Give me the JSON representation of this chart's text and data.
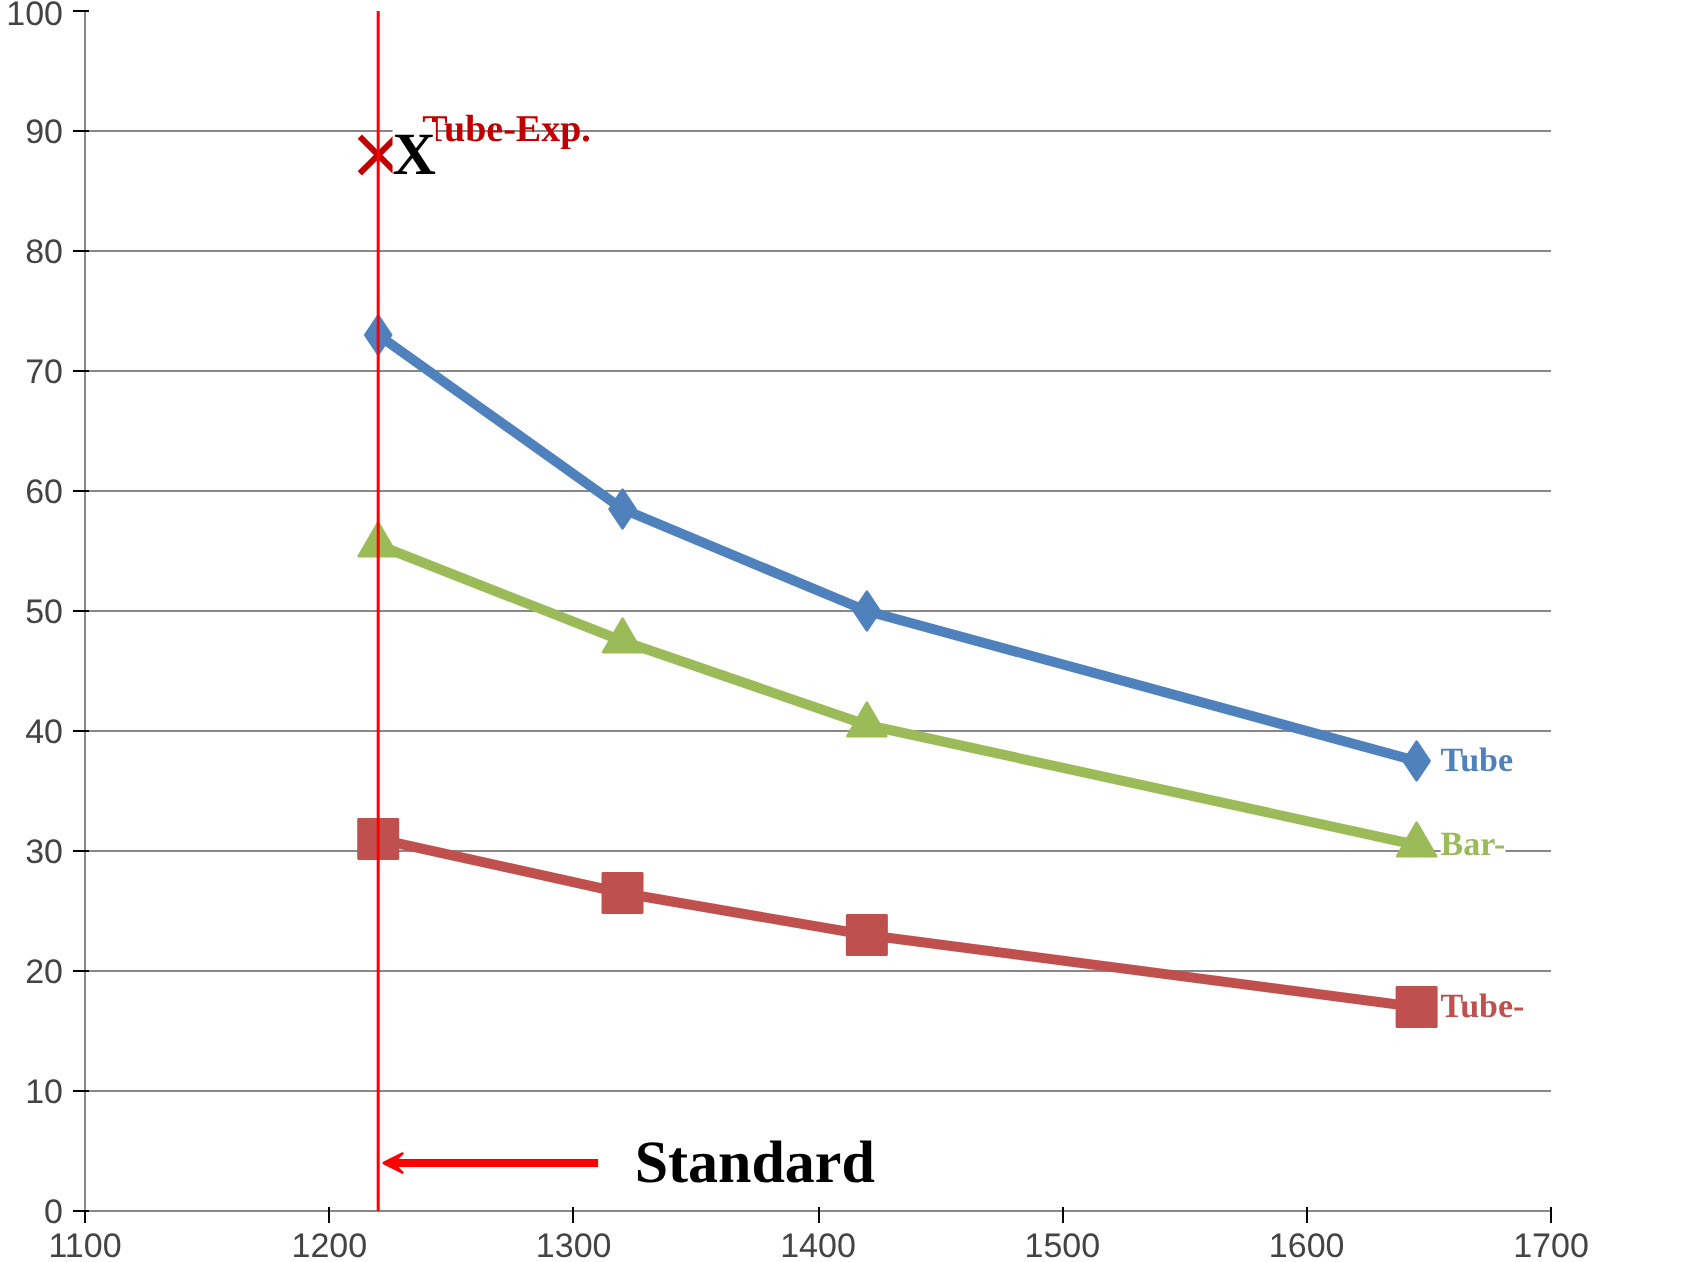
{
  "chart_data": {
    "type": "line",
    "x": [
      1220,
      1320,
      1420,
      1645
    ],
    "series": [
      {
        "name": "Tube",
        "color": "#4f81bd",
        "marker": "diamond",
        "values": [
          73,
          58.5,
          50,
          37.5
        ]
      },
      {
        "name": "Bar-",
        "color": "#9bbb59",
        "marker": "triangle",
        "values": [
          55.5,
          47.5,
          40.5,
          30.5
        ]
      },
      {
        "name": "Tube-",
        "color": "#c0504d",
        "marker": "square",
        "values": [
          31,
          26.5,
          23,
          17
        ]
      },
      {
        "name": "Tube-Exp.",
        "type": "scatter",
        "color": "#c00000",
        "marker": "cross",
        "x": [
          1220
        ],
        "values": [
          88
        ]
      }
    ],
    "xlim": [
      1100,
      1700
    ],
    "xticks": [
      1100,
      1200,
      1300,
      1400,
      1500,
      1600,
      1700
    ],
    "ylim": [
      0,
      100
    ],
    "yticks": [
      0,
      10,
      20,
      30,
      40,
      50,
      60,
      70,
      80,
      90,
      100
    ],
    "grid": "y",
    "ref_lines": [
      {
        "axis": "x",
        "value": 1220,
        "label": "Standard",
        "color": "#ff0000"
      }
    ],
    "annotations": [
      {
        "text": "X",
        "x": 1220,
        "y": 88
      }
    ]
  }
}
